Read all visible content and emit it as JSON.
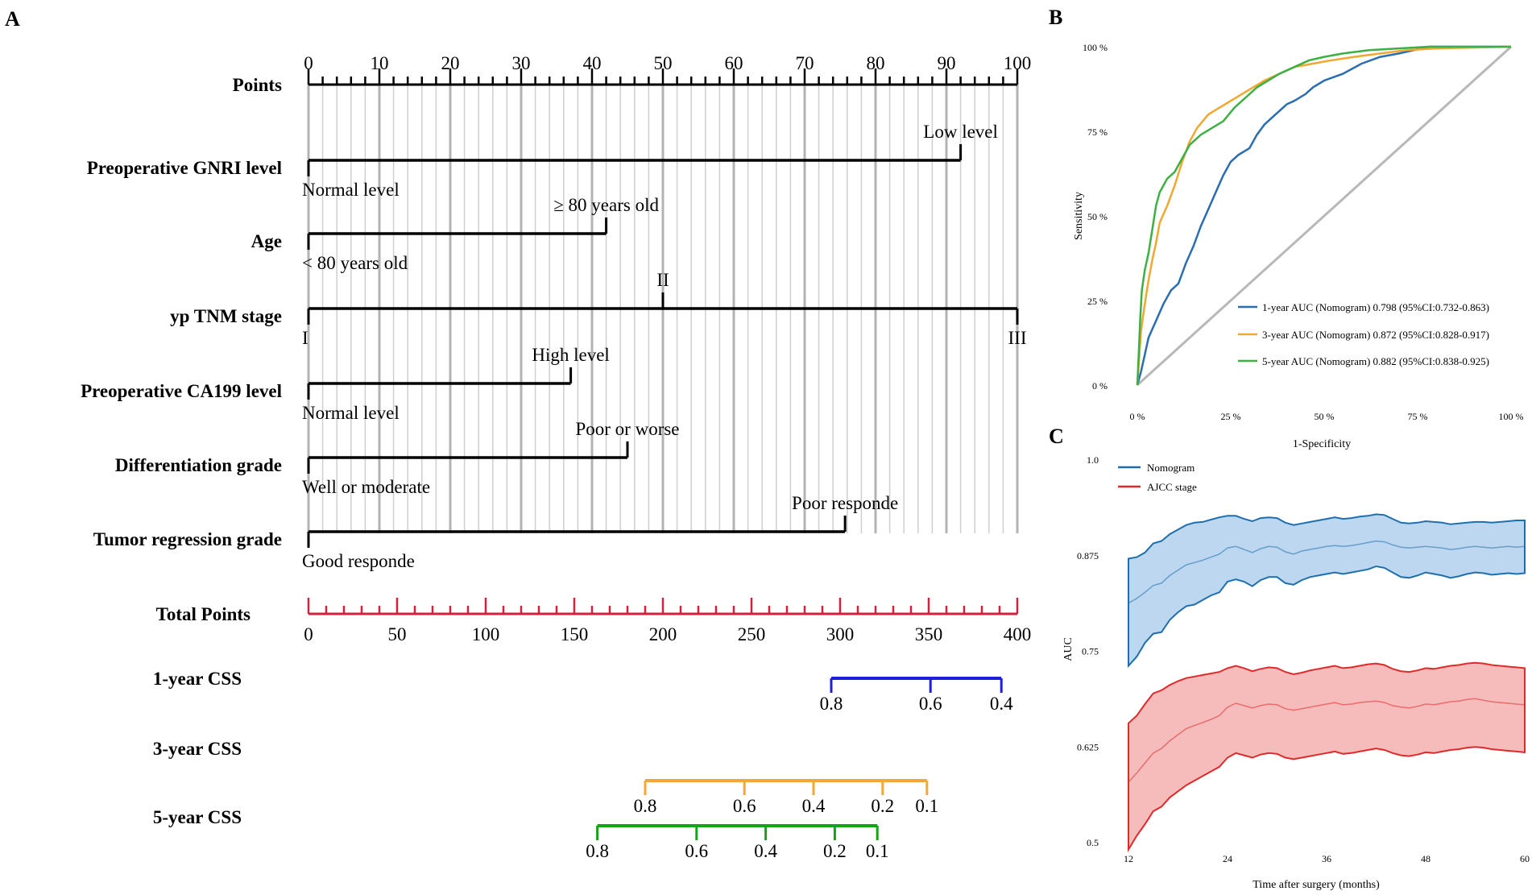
{
  "colors": {
    "axis": "#000000",
    "grid_major": "#b3b3b3",
    "grid_minor": "#cfcfcf",
    "total_points": "#d0213f",
    "css_1year": "#1f1fd6",
    "css_3year": "#f2a73a",
    "css_5year": "#17a317",
    "roc_1year": "#2a6db0",
    "roc_3year": "#f0a830",
    "roc_5year": "#3cb043",
    "diagonal": "#b8b8b8",
    "nomogram_line": "#1f6fae",
    "nomogram_fill": "#bcd7ef",
    "ajcc_line": "#e02a2a",
    "ajcc_fill": "#f6bcbc"
  },
  "panel_labels": {
    "a": "A",
    "b": "B",
    "c": "C"
  },
  "chart_data": [
    {
      "id": "nomogram",
      "type": "nomogram",
      "points_axis": {
        "label": "Points",
        "range": [
          0,
          100
        ],
        "major_ticks": [
          0,
          10,
          20,
          30,
          40,
          50,
          60,
          70,
          80,
          90,
          100
        ],
        "minor_step": 2
      },
      "variables": [
        {
          "label": "Preoperative GNRI level",
          "end": 92,
          "levels": [
            {
              "text": "Normal level",
              "points": 0,
              "pos": "below"
            },
            {
              "text": "Low level",
              "points": 92,
              "pos": "above"
            }
          ]
        },
        {
          "label": "Age",
          "end": 42,
          "levels": [
            {
              "text": "< 80 years old",
              "points": 0,
              "pos": "below"
            },
            {
              "text": "≥ 80 years old",
              "points": 42,
              "pos": "above"
            }
          ]
        },
        {
          "label": "yp TNM stage",
          "end": 100,
          "levels": [
            {
              "text": "I",
              "points": 0,
              "pos": "below"
            },
            {
              "text": "II",
              "points": 50,
              "pos": "above"
            },
            {
              "text": "III",
              "points": 100,
              "pos": "below"
            }
          ]
        },
        {
          "label": "Preoperative CA199 level",
          "end": 37,
          "levels": [
            {
              "text": "Normal level",
              "points": 0,
              "pos": "below"
            },
            {
              "text": "High level",
              "points": 37,
              "pos": "above"
            }
          ]
        },
        {
          "label": "Differentiation grade",
          "end": 45,
          "levels": [
            {
              "text": "Well or moderate",
              "points": 0,
              "pos": "below"
            },
            {
              "text": "Poor or worse",
              "points": 45,
              "pos": "above"
            }
          ]
        },
        {
          "label": "Tumor regression grade",
          "end": 75.7,
          "levels": [
            {
              "text": "Good responde",
              "points": 0,
              "pos": "below"
            },
            {
              "text": "Poor responde",
              "points": 75.7,
              "pos": "above"
            }
          ]
        }
      ],
      "total_points": {
        "label": "Total Points",
        "range": [
          0,
          400
        ],
        "major_ticks": [
          0,
          50,
          100,
          150,
          200,
          250,
          300,
          350,
          400
        ],
        "minor_step": 10
      },
      "survival_axes": [
        {
          "label": "1-year CSS",
          "color_key": "css_1year",
          "ticks": [
            {
              "total": 295,
              "text": "0.8"
            },
            {
              "total": 351,
              "text": "0.6"
            },
            {
              "total": 391,
              "text": "0.4"
            }
          ]
        },
        {
          "label": "3-year CSS",
          "color_key": "css_3year",
          "ticks": [
            {
              "total": 190,
              "text": "0.8"
            },
            {
              "total": 246,
              "text": "0.6"
            },
            {
              "total": 285,
              "text": "0.4"
            },
            {
              "total": 324,
              "text": "0.2"
            },
            {
              "total": 349,
              "text": "0.1"
            }
          ]
        },
        {
          "label": "5-year CSS",
          "color_key": "css_5year",
          "ticks": [
            {
              "total": 163,
              "text": "0.8"
            },
            {
              "total": 219,
              "text": "0.6"
            },
            {
              "total": 258,
              "text": "0.4"
            },
            {
              "total": 297,
              "text": "0.2"
            },
            {
              "total": 321,
              "text": "0.1"
            }
          ]
        }
      ]
    },
    {
      "id": "roc",
      "type": "line",
      "xlabel": "1-Specificity",
      "ylabel": "Sensitivity",
      "xlim": [
        0,
        1
      ],
      "ylim": [
        0,
        1
      ],
      "x_ticks": [
        {
          "v": 0,
          "t": "0 %"
        },
        {
          "v": 0.25,
          "t": "25 %"
        },
        {
          "v": 0.5,
          "t": "50 %"
        },
        {
          "v": 0.75,
          "t": "75 %"
        },
        {
          "v": 1,
          "t": "100 %"
        }
      ],
      "y_ticks": [
        {
          "v": 0,
          "t": "0 %"
        },
        {
          "v": 0.25,
          "t": "25 %"
        },
        {
          "v": 0.5,
          "t": "50 %"
        },
        {
          "v": 0.75,
          "t": "75 %"
        },
        {
          "v": 1,
          "t": "100 %"
        }
      ],
      "legend_position": "bottom-right",
      "series": [
        {
          "name": "1-year AUC (Nomogram) 0.798 (95%CI:0.732-0.863)",
          "color_key": "roc_1year",
          "points": [
            [
              0,
              0
            ],
            [
              0.01,
              0.04
            ],
            [
              0.02,
              0.09
            ],
            [
              0.03,
              0.14
            ],
            [
              0.05,
              0.19
            ],
            [
              0.07,
              0.24
            ],
            [
              0.09,
              0.28
            ],
            [
              0.11,
              0.3
            ],
            [
              0.13,
              0.36
            ],
            [
              0.15,
              0.41
            ],
            [
              0.17,
              0.47
            ],
            [
              0.19,
              0.52
            ],
            [
              0.21,
              0.57
            ],
            [
              0.23,
              0.62
            ],
            [
              0.25,
              0.66
            ],
            [
              0.27,
              0.68
            ],
            [
              0.3,
              0.7
            ],
            [
              0.32,
              0.74
            ],
            [
              0.34,
              0.77
            ],
            [
              0.36,
              0.79
            ],
            [
              0.38,
              0.81
            ],
            [
              0.4,
              0.83
            ],
            [
              0.42,
              0.84
            ],
            [
              0.45,
              0.86
            ],
            [
              0.47,
              0.88
            ],
            [
              0.5,
              0.9
            ],
            [
              0.55,
              0.92
            ],
            [
              0.6,
              0.95
            ],
            [
              0.65,
              0.97
            ],
            [
              0.7,
              0.98
            ],
            [
              0.78,
              1.0
            ],
            [
              1,
              1
            ]
          ]
        },
        {
          "name": "3-year AUC (Nomogram) 0.872 (95%CI:0.828-0.917)",
          "color_key": "roc_3year",
          "points": [
            [
              0,
              0
            ],
            [
              0.005,
              0.08
            ],
            [
              0.01,
              0.16
            ],
            [
              0.02,
              0.24
            ],
            [
              0.03,
              0.31
            ],
            [
              0.04,
              0.37
            ],
            [
              0.05,
              0.42
            ],
            [
              0.06,
              0.48
            ],
            [
              0.08,
              0.53
            ],
            [
              0.1,
              0.59
            ],
            [
              0.12,
              0.66
            ],
            [
              0.14,
              0.72
            ],
            [
              0.16,
              0.76
            ],
            [
              0.19,
              0.8
            ],
            [
              0.22,
              0.82
            ],
            [
              0.25,
              0.84
            ],
            [
              0.28,
              0.86
            ],
            [
              0.31,
              0.88
            ],
            [
              0.34,
              0.9
            ],
            [
              0.38,
              0.92
            ],
            [
              0.42,
              0.94
            ],
            [
              0.47,
              0.95
            ],
            [
              0.52,
              0.96
            ],
            [
              0.58,
              0.97
            ],
            [
              0.65,
              0.98
            ],
            [
              0.72,
              0.99
            ],
            [
              0.8,
              0.995
            ],
            [
              1,
              1
            ]
          ]
        },
        {
          "name": "5-year AUC (Nomogram) 0.882 (95%CI:0.838-0.925)",
          "color_key": "roc_5year",
          "points": [
            [
              0,
              0
            ],
            [
              0.004,
              0.1
            ],
            [
              0.008,
              0.2
            ],
            [
              0.012,
              0.28
            ],
            [
              0.02,
              0.34
            ],
            [
              0.03,
              0.39
            ],
            [
              0.04,
              0.46
            ],
            [
              0.05,
              0.53
            ],
            [
              0.06,
              0.57
            ],
            [
              0.08,
              0.61
            ],
            [
              0.1,
              0.63
            ],
            [
              0.12,
              0.67
            ],
            [
              0.14,
              0.71
            ],
            [
              0.17,
              0.74
            ],
            [
              0.2,
              0.76
            ],
            [
              0.23,
              0.78
            ],
            [
              0.26,
              0.82
            ],
            [
              0.29,
              0.85
            ],
            [
              0.32,
              0.88
            ],
            [
              0.35,
              0.9
            ],
            [
              0.38,
              0.92
            ],
            [
              0.42,
              0.94
            ],
            [
              0.46,
              0.96
            ],
            [
              0.5,
              0.97
            ],
            [
              0.55,
              0.98
            ],
            [
              0.62,
              0.99
            ],
            [
              0.7,
              0.995
            ],
            [
              0.78,
              1.0
            ],
            [
              1,
              1
            ]
          ]
        }
      ]
    },
    {
      "id": "time_auc",
      "type": "area",
      "xlabel": "Time after surgery (months)",
      "ylabel": "AUC",
      "xlim": [
        12,
        60
      ],
      "ylim": [
        0.5,
        1.0
      ],
      "x_ticks": [
        12,
        24,
        36,
        48,
        60
      ],
      "y_ticks": [
        {
          "v": 0.5,
          "t": "0.5"
        },
        {
          "v": 0.625,
          "t": "0.625"
        },
        {
          "v": 0.75,
          "t": "0.75"
        },
        {
          "v": 0.875,
          "t": "0.875"
        },
        {
          "v": 1.0,
          "t": "1.0"
        }
      ],
      "legend_position": "top-left",
      "x": [
        12,
        13,
        14,
        15,
        16,
        17,
        18,
        19,
        20,
        21,
        22,
        23,
        24,
        25,
        26,
        27,
        28,
        29,
        30,
        31,
        32,
        33,
        34,
        35,
        36,
        37,
        38,
        39,
        40,
        41,
        42,
        43,
        44,
        45,
        46,
        47,
        48,
        49,
        50,
        51,
        52,
        53,
        54,
        55,
        56,
        57,
        58,
        59,
        60
      ],
      "series": [
        {
          "name": "Nomogram",
          "color_key": "nomogram_line",
          "fill_key": "nomogram_fill",
          "values": [
            0.812,
            0.818,
            0.826,
            0.835,
            0.838,
            0.848,
            0.855,
            0.862,
            0.865,
            0.868,
            0.872,
            0.876,
            0.884,
            0.886,
            0.882,
            0.878,
            0.883,
            0.886,
            0.885,
            0.879,
            0.876,
            0.88,
            0.882,
            0.884,
            0.886,
            0.887,
            0.886,
            0.887,
            0.889,
            0.891,
            0.893,
            0.892,
            0.888,
            0.885,
            0.884,
            0.885,
            0.886,
            0.885,
            0.884,
            0.882,
            0.883,
            0.885,
            0.886,
            0.885,
            0.884,
            0.885,
            0.886,
            0.885,
            0.886
          ],
          "upper": [
            0.87,
            0.872,
            0.878,
            0.89,
            0.893,
            0.902,
            0.908,
            0.914,
            0.917,
            0.918,
            0.921,
            0.924,
            0.926,
            0.926,
            0.922,
            0.919,
            0.923,
            0.924,
            0.923,
            0.917,
            0.914,
            0.916,
            0.918,
            0.92,
            0.922,
            0.924,
            0.922,
            0.923,
            0.925,
            0.926,
            0.928,
            0.927,
            0.922,
            0.917,
            0.916,
            0.917,
            0.919,
            0.918,
            0.917,
            0.915,
            0.916,
            0.917,
            0.918,
            0.918,
            0.917,
            0.918,
            0.919,
            0.92,
            0.92
          ],
          "lower": [
            0.73,
            0.742,
            0.76,
            0.772,
            0.774,
            0.79,
            0.8,
            0.808,
            0.81,
            0.816,
            0.822,
            0.826,
            0.84,
            0.843,
            0.84,
            0.834,
            0.842,
            0.846,
            0.846,
            0.838,
            0.836,
            0.842,
            0.846,
            0.848,
            0.85,
            0.852,
            0.85,
            0.852,
            0.854,
            0.856,
            0.86,
            0.858,
            0.852,
            0.846,
            0.845,
            0.848,
            0.852,
            0.85,
            0.848,
            0.845,
            0.847,
            0.85,
            0.852,
            0.851,
            0.849,
            0.85,
            0.851,
            0.85,
            0.851
          ]
        },
        {
          "name": "AJCC stage",
          "color_key": "ajcc_line",
          "fill_key": "ajcc_fill",
          "values": [
            0.578,
            0.59,
            0.603,
            0.616,
            0.622,
            0.632,
            0.64,
            0.648,
            0.652,
            0.656,
            0.66,
            0.665,
            0.676,
            0.681,
            0.678,
            0.675,
            0.678,
            0.68,
            0.679,
            0.674,
            0.672,
            0.674,
            0.676,
            0.678,
            0.68,
            0.682,
            0.679,
            0.68,
            0.682,
            0.683,
            0.684,
            0.682,
            0.678,
            0.676,
            0.675,
            0.677,
            0.68,
            0.679,
            0.681,
            0.683,
            0.684,
            0.686,
            0.687,
            0.685,
            0.683,
            0.682,
            0.681,
            0.68,
            0.679
          ],
          "upper": [
            0.655,
            0.665,
            0.68,
            0.694,
            0.698,
            0.705,
            0.71,
            0.714,
            0.716,
            0.718,
            0.72,
            0.722,
            0.727,
            0.73,
            0.727,
            0.723,
            0.726,
            0.728,
            0.727,
            0.722,
            0.719,
            0.721,
            0.724,
            0.726,
            0.728,
            0.73,
            0.727,
            0.728,
            0.73,
            0.732,
            0.733,
            0.731,
            0.726,
            0.723,
            0.722,
            0.724,
            0.727,
            0.726,
            0.728,
            0.73,
            0.731,
            0.733,
            0.734,
            0.733,
            0.731,
            0.73,
            0.729,
            0.728,
            0.727
          ],
          "lower": [
            0.49,
            0.508,
            0.523,
            0.54,
            0.546,
            0.558,
            0.566,
            0.574,
            0.58,
            0.586,
            0.592,
            0.598,
            0.61,
            0.616,
            0.613,
            0.61,
            0.614,
            0.616,
            0.615,
            0.61,
            0.608,
            0.61,
            0.612,
            0.614,
            0.616,
            0.618,
            0.615,
            0.616,
            0.618,
            0.62,
            0.622,
            0.62,
            0.616,
            0.613,
            0.612,
            0.614,
            0.617,
            0.616,
            0.618,
            0.62,
            0.621,
            0.623,
            0.624,
            0.623,
            0.621,
            0.62,
            0.619,
            0.618,
            0.617
          ]
        }
      ]
    }
  ]
}
